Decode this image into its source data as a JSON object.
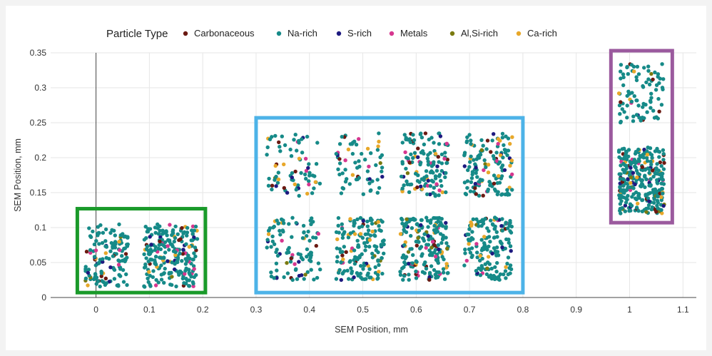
{
  "chart_data": {
    "type": "scatter",
    "xlabel": "SEM Position, mm",
    "ylabel": "SEM Position, mm",
    "xlim": [
      -0.085,
      1.125
    ],
    "ylim": [
      0,
      0.35
    ],
    "xticks": [
      "0",
      "0.1",
      "0.2",
      "0.3",
      "0.4",
      "0.5",
      "0.6",
      "0.7",
      "0.8",
      "0.9",
      "1",
      "1.1"
    ],
    "yticks": [
      "0",
      "0.05",
      "0.1",
      "0.15",
      "0.2",
      "0.25",
      "0.3",
      "0.35"
    ],
    "grid": true,
    "legend": {
      "title": "Particle Type",
      "placement": "top",
      "entries": [
        {
          "name": "Carbonaceous",
          "color": "#6b1a12"
        },
        {
          "name": "Na-rich",
          "color": "#168a88"
        },
        {
          "name": "S-rich",
          "color": "#1e1a80"
        },
        {
          "name": "Metals",
          "color": "#d6378f"
        },
        {
          "name": "Al,Si-rich",
          "color": "#7a7a10"
        },
        {
          "name": "Ca-rich",
          "color": "#e8a82a"
        }
      ]
    },
    "clusters": [
      {
        "x": [
          -0.02,
          0.06
        ],
        "y": [
          0.015,
          0.105
        ],
        "n": 140
      },
      {
        "x": [
          0.09,
          0.19
        ],
        "y": [
          0.015,
          0.105
        ],
        "n": 230
      },
      {
        "x": [
          0.32,
          0.42
        ],
        "y": [
          0.025,
          0.115
        ],
        "n": 100
      },
      {
        "x": [
          0.45,
          0.54
        ],
        "y": [
          0.025,
          0.115
        ],
        "n": 160
      },
      {
        "x": [
          0.57,
          0.66
        ],
        "y": [
          0.025,
          0.115
        ],
        "n": 200
      },
      {
        "x": [
          0.69,
          0.78
        ],
        "y": [
          0.025,
          0.115
        ],
        "n": 160
      },
      {
        "x": [
          0.32,
          0.42
        ],
        "y": [
          0.145,
          0.235
        ],
        "n": 75
      },
      {
        "x": [
          0.45,
          0.54
        ],
        "y": [
          0.145,
          0.235
        ],
        "n": 65
      },
      {
        "x": [
          0.57,
          0.66
        ],
        "y": [
          0.145,
          0.235
        ],
        "n": 135
      },
      {
        "x": [
          0.69,
          0.78
        ],
        "y": [
          0.145,
          0.235
        ],
        "n": 140
      },
      {
        "x": [
          0.98,
          1.065
        ],
        "y": [
          0.25,
          0.335
        ],
        "n": 90
      },
      {
        "x": [
          0.98,
          1.065
        ],
        "y": [
          0.12,
          0.215
        ],
        "n": 310
      }
    ],
    "highlight_boxes": [
      {
        "color": "#1a9a2a",
        "x": [
          -0.035,
          0.205
        ],
        "y": [
          0.007,
          0.127
        ]
      },
      {
        "color": "#4db3e8",
        "x": [
          0.3,
          0.8
        ],
        "y": [
          0.007,
          0.257
        ]
      },
      {
        "color": "#9b5a9e",
        "x": [
          0.965,
          1.08
        ],
        "y": [
          0.107,
          0.353
        ]
      }
    ]
  }
}
